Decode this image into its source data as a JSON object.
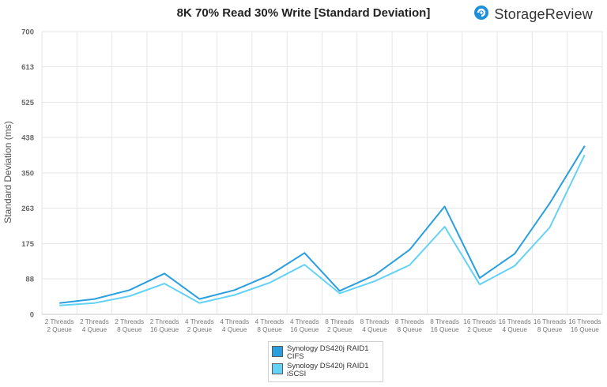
{
  "brand": {
    "name": "StorageReview",
    "icon": "storagereview-logo-icon",
    "color": "#1e90d8"
  },
  "chart_data": {
    "type": "line",
    "title": "8K 70% Read 30% Write [Standard Deviation]",
    "ylabel": "Standard Deviation (ms)",
    "xlabel": "",
    "ylim": [
      0,
      700
    ],
    "yticks": [
      "0",
      "88",
      "175",
      "263",
      "350",
      "438",
      "525",
      "613",
      "700"
    ],
    "grid": true,
    "legend_position": "bottom",
    "categories": [
      [
        "2 Threads",
        "2 Queue"
      ],
      [
        "2 Threads",
        "4 Queue"
      ],
      [
        "2 Threads",
        "8 Queue"
      ],
      [
        "2 Threads",
        "16 Queue"
      ],
      [
        "4 Threads",
        "2 Queue"
      ],
      [
        "4 Threads",
        "4 Queue"
      ],
      [
        "4 Threads",
        "8 Queue"
      ],
      [
        "4 Threads",
        "16 Queue"
      ],
      [
        "8 Threads",
        "2 Queue"
      ],
      [
        "8 Threads",
        "4 Queue"
      ],
      [
        "8 Threads",
        "8 Queue"
      ],
      [
        "8 Threads",
        "16 Queue"
      ],
      [
        "16 Threads",
        "2 Queue"
      ],
      [
        "16 Threads",
        "4 Queue"
      ],
      [
        "16 Threads",
        "8 Queue"
      ],
      [
        "16 Threads",
        "16 Queue"
      ]
    ],
    "series": [
      {
        "name": "Synology DS420j RAID1\nCIFS",
        "color": "#2a9fe0",
        "values": [
          28,
          38,
          60,
          101,
          38,
          60,
          97,
          152,
          58,
          97,
          160,
          267,
          90,
          150,
          275,
          417
        ]
      },
      {
        "name": "Synology DS420j RAID1\niSCSI",
        "color": "#63d2f6",
        "values": [
          22,
          28,
          45,
          76,
          28,
          48,
          78,
          123,
          52,
          82,
          122,
          217,
          74,
          120,
          215,
          395
        ]
      }
    ]
  }
}
